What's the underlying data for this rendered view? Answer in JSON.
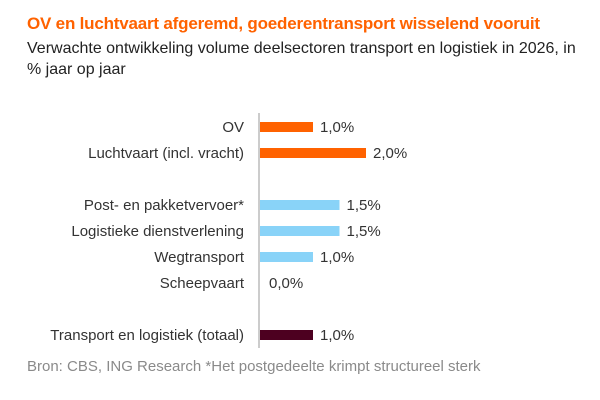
{
  "chart_data": {
    "type": "bar",
    "orientation": "horizontal",
    "title": "OV en luchtvaart afgeremd, goederentransport wisselend vooruit",
    "subtitle": "Verwachte ontwikkeling volume deelsectoren transport en logistiek in 2026, in % jaar op jaar",
    "categories": [
      "OV",
      "Luchtvaart (incl. vracht)",
      "Post- en pakketvervoer*",
      "Logistieke dienstverlening",
      "Wegtransport",
      "Scheepvaart",
      "Transport en logistiek (totaal)"
    ],
    "values": [
      1.0,
      2.0,
      1.5,
      1.5,
      1.0,
      0.0,
      1.0
    ],
    "data_labels": [
      "1,0%",
      "2,0%",
      "1,5%",
      "1,5%",
      "1,0%",
      "0,0%",
      "1,0%"
    ],
    "groups": [
      "personen",
      "personen",
      "goederen",
      "goederen",
      "goederen",
      "goederen",
      "totaal"
    ],
    "colors": {
      "personen": "#FF6200",
      "goederen": "#89D3F8",
      "totaal": "#4D0020"
    },
    "grid": false,
    "legend": "none",
    "source": "Bron: CBS, ING Research *Het postgedeelte krimpt structureel sterk"
  }
}
